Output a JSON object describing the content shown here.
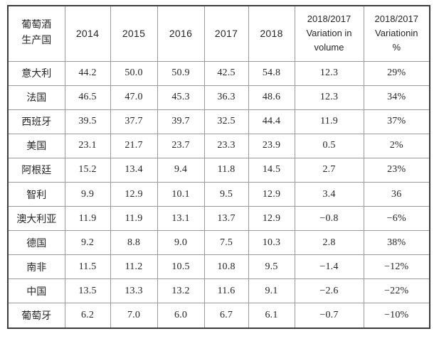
{
  "table": {
    "header": {
      "country_lines": [
        "葡萄酒",
        "生产国"
      ],
      "years": [
        "2014",
        "2015",
        "2016",
        "2017",
        "2018"
      ],
      "variation_volume_lines": [
        "2018/2017",
        "Variation in",
        "volume"
      ],
      "variation_percent_lines": [
        "2018/2017",
        "Variationin",
        "%"
      ]
    },
    "rows": [
      {
        "country": "意大利",
        "values": [
          "44.2",
          "50.0",
          "50.9",
          "42.5",
          "54.8",
          "12.3",
          "29%"
        ]
      },
      {
        "country": "法国",
        "values": [
          "46.5",
          "47.0",
          "45.3",
          "36.3",
          "48.6",
          "12.3",
          "34%"
        ]
      },
      {
        "country": "西班牙",
        "values": [
          "39.5",
          "37.7",
          "39.7",
          "32.5",
          "44.4",
          "11.9",
          "37%"
        ]
      },
      {
        "country": "美国",
        "values": [
          "23.1",
          "21.7",
          "23.7",
          "23.3",
          "23.9",
          "0.5",
          "2%"
        ]
      },
      {
        "country": "阿根廷",
        "values": [
          "15.2",
          "13.4",
          "9.4",
          "11.8",
          "14.5",
          "2.7",
          "23%"
        ]
      },
      {
        "country": "智利",
        "values": [
          "9.9",
          "12.9",
          "10.1",
          "9.5",
          "12.9",
          "3.4",
          "36"
        ]
      },
      {
        "country": "澳大利亚",
        "values": [
          "11.9",
          "11.9",
          "13.1",
          "13.7",
          "12.9",
          "−0.8",
          "−6%"
        ]
      },
      {
        "country": "德国",
        "values": [
          "9.2",
          "8.8",
          "9.0",
          "7.5",
          "10.3",
          "2.8",
          "38%"
        ]
      },
      {
        "country": "南非",
        "values": [
          "11.5",
          "11.2",
          "10.5",
          "10.8",
          "9.5",
          "−1.4",
          "−12%"
        ]
      },
      {
        "country": "中国",
        "values": [
          "13.5",
          "13.3",
          "13.2",
          "11.6",
          "9.1",
          "−2.6",
          "−22%"
        ]
      },
      {
        "country": "葡萄牙",
        "values": [
          "6.2",
          "7.0",
          "6.0",
          "6.7",
          "6.1",
          "−0.7",
          "−10%"
        ]
      }
    ],
    "colors": {
      "outer_border": "#3c3c3c",
      "inner_border": "#9a9a9a",
      "text": "#262626",
      "background": "#ffffff"
    }
  }
}
